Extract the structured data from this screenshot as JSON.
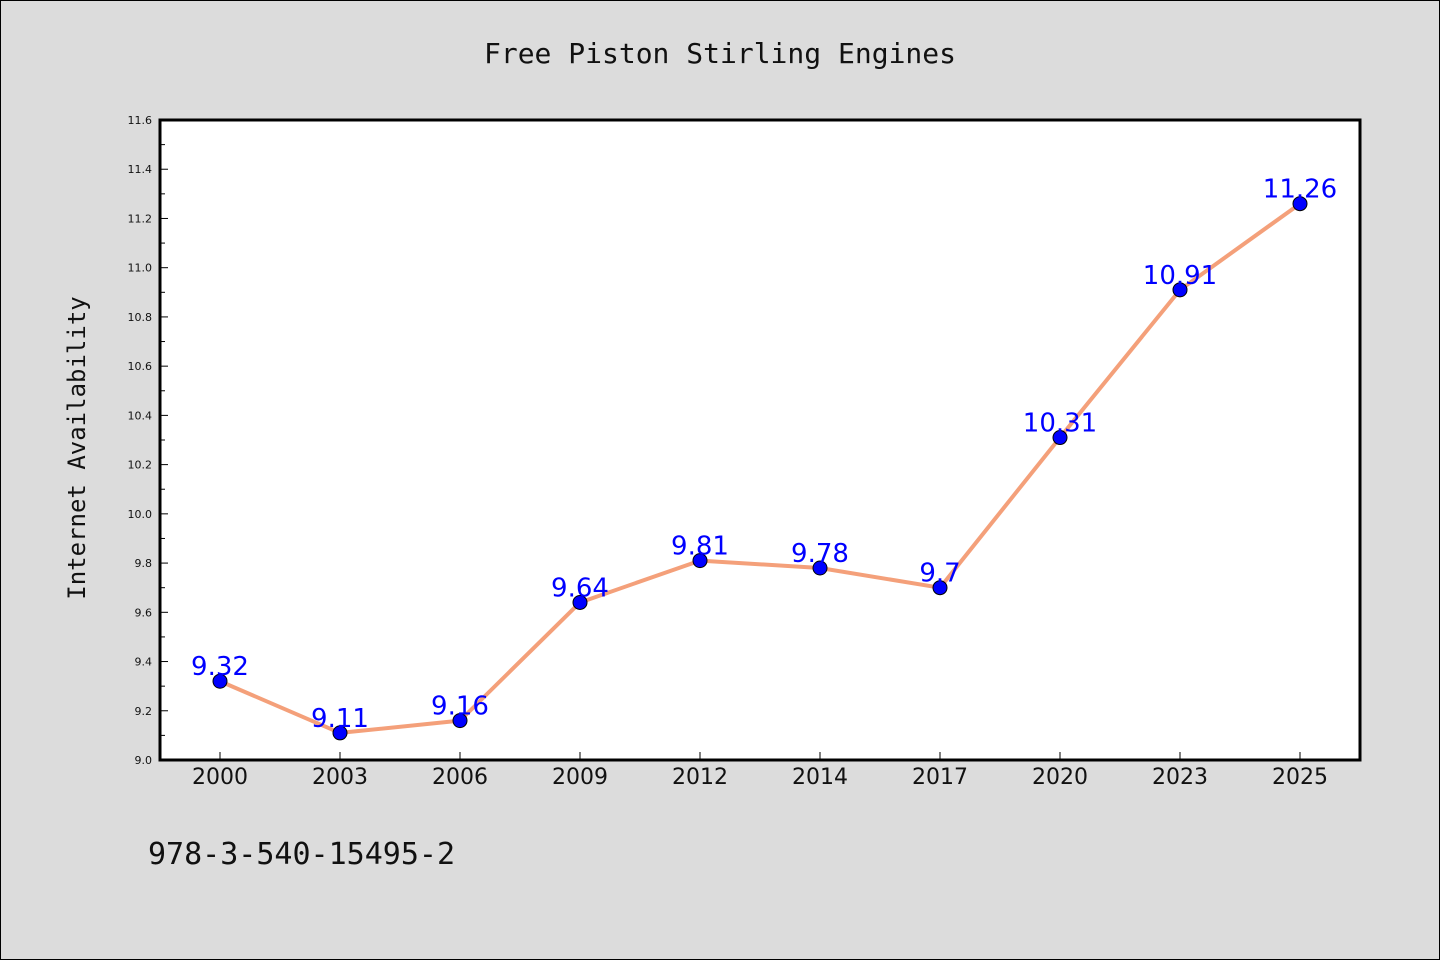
{
  "chart_data": {
    "type": "line",
    "title": "Free Piston Stirling Engines",
    "xlabel": "",
    "ylabel": "Internet Availability",
    "categories": [
      "2000",
      "2003",
      "2006",
      "2009",
      "2012",
      "2014",
      "2017",
      "2020",
      "2023",
      "2025"
    ],
    "series": [
      {
        "values": [
          9.32,
          9.11,
          9.16,
          9.64,
          9.81,
          9.78,
          9.7,
          10.31,
          10.91,
          11.26
        ],
        "data_labels": [
          "9.32",
          "9.11",
          "9.16",
          "9.64",
          "9.81",
          "9.78",
          "9.7",
          "10.31",
          "10.91",
          "11.26"
        ],
        "line_color": "#f4a07a",
        "marker_color": "#0000ff"
      }
    ],
    "ylim": [
      9.0,
      11.6
    ],
    "yticks": [
      "9.0",
      "9.2",
      "9.4",
      "9.6",
      "9.8",
      "10.0",
      "10.2",
      "10.4",
      "10.6",
      "10.8",
      "11.0",
      "11.2",
      "11.4",
      "11.6"
    ],
    "grid": false,
    "legend": "none"
  },
  "footer_text": "978-3-540-15495-2",
  "colors": {
    "background": "#dcdcdc",
    "plot_background": "#ffffff",
    "label_color": "#0000ff"
  }
}
